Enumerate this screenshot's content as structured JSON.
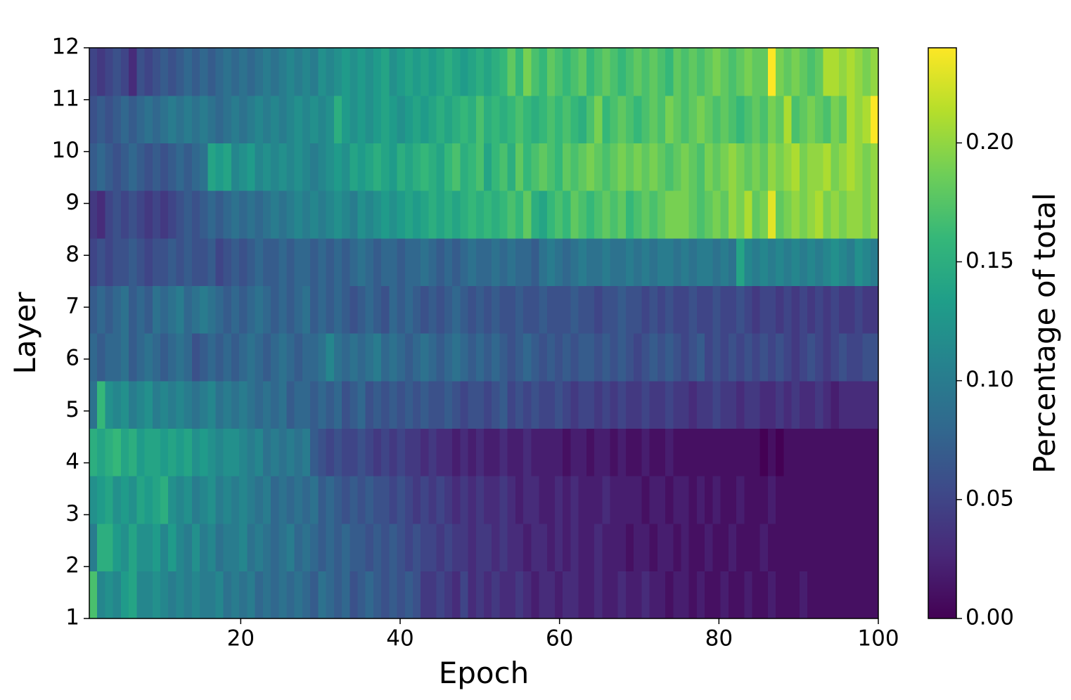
{
  "chart_data": {
    "type": "heatmap",
    "xlabel": "Epoch",
    "ylabel": "Layer",
    "colorbar_label": "Percentage of total",
    "xlim": [
      1,
      100
    ],
    "ylim": [
      1,
      12
    ],
    "xticks": [
      20,
      40,
      60,
      80,
      100
    ],
    "yticks": [
      1,
      2,
      3,
      4,
      5,
      6,
      7,
      8,
      9,
      10,
      11,
      12
    ],
    "clim": [
      0,
      0.24
    ],
    "cticks": [
      {
        "value": 0,
        "label": "0.00"
      },
      {
        "value": 0.05,
        "label": "0.05"
      },
      {
        "value": 0.1,
        "label": "0.10"
      },
      {
        "value": 0.15,
        "label": "0.15"
      },
      {
        "value": 0.2,
        "label": "0.20"
      }
    ],
    "colormap": [
      "#440154",
      "#482878",
      "#3e4989",
      "#31688e",
      "#26828e",
      "#1f9e89",
      "#35b779",
      "#6ece58",
      "#b5de2b",
      "#fde725"
    ],
    "values": [
      [
        0.17,
        0.11,
        0.12,
        0.11,
        0.13,
        0.14,
        0.11,
        0.11,
        0.12,
        0.11,
        0.1,
        0.11,
        0.1,
        0.11,
        0.1,
        0.1,
        0.11,
        0.09,
        0.1,
        0.09,
        0.1,
        0.08,
        0.09,
        0.08,
        0.09,
        0.08,
        0.09,
        0.08,
        0.07,
        0.09,
        0.08,
        0.07,
        0.08,
        0.06,
        0.07,
        0.08,
        0.07,
        0.06,
        0.07,
        0.06,
        0.07,
        0.06,
        0.04,
        0.04,
        0.05,
        0.04,
        0.03,
        0.05,
        0.03,
        0.04,
        0.03,
        0.04,
        0.03,
        0.03,
        0.04,
        0.03,
        0.02,
        0.03,
        0.03,
        0.02,
        0.03,
        0.03,
        0.02,
        0.02,
        0.03,
        0.02,
        0.02,
        0.03,
        0.02,
        0.02,
        0.03,
        0.02,
        0.02,
        0.01,
        0.02,
        0.02,
        0.01,
        0.02,
        0.01,
        0.01,
        0.02,
        0.01,
        0.01,
        0.02,
        0.01,
        0.01,
        0.02,
        0.01,
        0.01,
        0.01,
        0.02,
        0.01,
        0.01,
        0.01,
        0.01,
        0.01,
        0.01,
        0.01,
        0.01,
        0.01
      ],
      [
        0.1,
        0.15,
        0.15,
        0.13,
        0.12,
        0.14,
        0.12,
        0.12,
        0.13,
        0.11,
        0.13,
        0.11,
        0.1,
        0.12,
        0.1,
        0.11,
        0.09,
        0.1,
        0.1,
        0.11,
        0.09,
        0.1,
        0.09,
        0.08,
        0.09,
        0.1,
        0.08,
        0.09,
        0.08,
        0.07,
        0.08,
        0.07,
        0.08,
        0.07,
        0.07,
        0.06,
        0.07,
        0.06,
        0.07,
        0.06,
        0.05,
        0.06,
        0.05,
        0.05,
        0.04,
        0.05,
        0.04,
        0.04,
        0.03,
        0.04,
        0.04,
        0.03,
        0.04,
        0.03,
        0.03,
        0.02,
        0.03,
        0.03,
        0.02,
        0.03,
        0.02,
        0.03,
        0.02,
        0.02,
        0.03,
        0.02,
        0.02,
        0.02,
        0.01,
        0.02,
        0.02,
        0.01,
        0.02,
        0.02,
        0.01,
        0.02,
        0.01,
        0.01,
        0.02,
        0.01,
        0.01,
        0.02,
        0.01,
        0.01,
        0.01,
        0.02,
        0.01,
        0.01,
        0.01,
        0.01,
        0.01,
        0.01,
        0.01,
        0.01,
        0.01,
        0.01,
        0.01,
        0.01,
        0.01,
        0.01
      ],
      [
        0.12,
        0.13,
        0.14,
        0.12,
        0.13,
        0.12,
        0.14,
        0.13,
        0.14,
        0.15,
        0.12,
        0.11,
        0.12,
        0.1,
        0.11,
        0.12,
        0.1,
        0.11,
        0.1,
        0.11,
        0.1,
        0.09,
        0.1,
        0.08,
        0.09,
        0.08,
        0.09,
        0.08,
        0.09,
        0.07,
        0.08,
        0.07,
        0.06,
        0.07,
        0.06,
        0.07,
        0.06,
        0.06,
        0.05,
        0.06,
        0.05,
        0.04,
        0.05,
        0.04,
        0.05,
        0.04,
        0.03,
        0.04,
        0.03,
        0.04,
        0.03,
        0.03,
        0.04,
        0.03,
        0.02,
        0.03,
        0.03,
        0.02,
        0.02,
        0.03,
        0.02,
        0.03,
        0.02,
        0.02,
        0.02,
        0.03,
        0.02,
        0.02,
        0.02,
        0.02,
        0.01,
        0.02,
        0.02,
        0.01,
        0.02,
        0.02,
        0.01,
        0.02,
        0.01,
        0.02,
        0.01,
        0.01,
        0.02,
        0.01,
        0.01,
        0.01,
        0.02,
        0.01,
        0.01,
        0.01,
        0.01,
        0.01,
        0.01,
        0.01,
        0.01,
        0.01,
        0.01,
        0.01,
        0.01,
        0.01
      ],
      [
        0.15,
        0.14,
        0.15,
        0.16,
        0.14,
        0.15,
        0.13,
        0.14,
        0.14,
        0.13,
        0.14,
        0.13,
        0.14,
        0.12,
        0.13,
        0.12,
        0.11,
        0.12,
        0.12,
        0.11,
        0.1,
        0.11,
        0.09,
        0.1,
        0.09,
        0.1,
        0.09,
        0.1,
        0.07,
        0.06,
        0.05,
        0.06,
        0.05,
        0.05,
        0.06,
        0.05,
        0.04,
        0.05,
        0.04,
        0.05,
        0.04,
        0.04,
        0.03,
        0.04,
        0.03,
        0.03,
        0.02,
        0.03,
        0.02,
        0.03,
        0.02,
        0.02,
        0.03,
        0.02,
        0.02,
        0.03,
        0.02,
        0.02,
        0.02,
        0.02,
        0.01,
        0.02,
        0.02,
        0.01,
        0.02,
        0.02,
        0.01,
        0.02,
        0.01,
        0.01,
        0.02,
        0.01,
        0.01,
        0.02,
        0.01,
        0.01,
        0.01,
        0.01,
        0.01,
        0.01,
        0.01,
        0.01,
        0.01,
        0.01,
        0.01,
        0.0,
        0.01,
        0.0,
        0.01,
        0.01,
        0.01,
        0.01,
        0.01,
        0.01,
        0.01,
        0.01,
        0.01,
        0.01,
        0.01,
        0.01
      ],
      [
        0.09,
        0.16,
        0.12,
        0.11,
        0.12,
        0.1,
        0.11,
        0.12,
        0.1,
        0.11,
        0.1,
        0.11,
        0.1,
        0.09,
        0.1,
        0.11,
        0.09,
        0.1,
        0.09,
        0.1,
        0.09,
        0.08,
        0.09,
        0.08,
        0.09,
        0.07,
        0.08,
        0.08,
        0.07,
        0.08,
        0.07,
        0.08,
        0.06,
        0.07,
        0.08,
        0.06,
        0.07,
        0.06,
        0.07,
        0.06,
        0.07,
        0.06,
        0.07,
        0.06,
        0.06,
        0.07,
        0.06,
        0.05,
        0.06,
        0.06,
        0.05,
        0.06,
        0.07,
        0.05,
        0.06,
        0.05,
        0.06,
        0.05,
        0.05,
        0.06,
        0.05,
        0.04,
        0.05,
        0.05,
        0.04,
        0.05,
        0.04,
        0.05,
        0.04,
        0.04,
        0.05,
        0.04,
        0.04,
        0.05,
        0.04,
        0.04,
        0.03,
        0.04,
        0.04,
        0.05,
        0.04,
        0.04,
        0.03,
        0.04,
        0.04,
        0.03,
        0.03,
        0.04,
        0.03,
        0.04,
        0.03,
        0.03,
        0.04,
        0.03,
        0.02,
        0.03,
        0.03,
        0.03,
        0.03,
        0.03
      ],
      [
        0.08,
        0.07,
        0.08,
        0.08,
        0.09,
        0.07,
        0.08,
        0.09,
        0.08,
        0.07,
        0.08,
        0.09,
        0.08,
        0.06,
        0.07,
        0.08,
        0.07,
        0.08,
        0.07,
        0.08,
        0.09,
        0.08,
        0.07,
        0.08,
        0.09,
        0.08,
        0.07,
        0.08,
        0.08,
        0.09,
        0.11,
        0.09,
        0.08,
        0.09,
        0.08,
        0.09,
        0.1,
        0.08,
        0.09,
        0.08,
        0.07,
        0.08,
        0.09,
        0.08,
        0.07,
        0.08,
        0.09,
        0.08,
        0.07,
        0.08,
        0.07,
        0.08,
        0.07,
        0.06,
        0.07,
        0.08,
        0.07,
        0.06,
        0.07,
        0.06,
        0.07,
        0.06,
        0.07,
        0.07,
        0.06,
        0.07,
        0.06,
        0.07,
        0.06,
        0.05,
        0.06,
        0.07,
        0.06,
        0.07,
        0.06,
        0.05,
        0.06,
        0.07,
        0.05,
        0.06,
        0.05,
        0.06,
        0.05,
        0.06,
        0.05,
        0.06,
        0.05,
        0.06,
        0.05,
        0.04,
        0.05,
        0.06,
        0.05,
        0.04,
        0.05,
        0.06,
        0.05,
        0.05,
        0.06,
        0.06
      ],
      [
        0.07,
        0.08,
        0.07,
        0.08,
        0.09,
        0.07,
        0.08,
        0.07,
        0.09,
        0.08,
        0.09,
        0.1,
        0.08,
        0.09,
        0.1,
        0.09,
        0.08,
        0.07,
        0.08,
        0.07,
        0.08,
        0.09,
        0.08,
        0.07,
        0.08,
        0.07,
        0.08,
        0.09,
        0.07,
        0.08,
        0.07,
        0.08,
        0.07,
        0.06,
        0.07,
        0.08,
        0.07,
        0.06,
        0.08,
        0.07,
        0.08,
        0.07,
        0.06,
        0.07,
        0.06,
        0.07,
        0.08,
        0.07,
        0.06,
        0.07,
        0.06,
        0.07,
        0.06,
        0.06,
        0.07,
        0.06,
        0.06,
        0.07,
        0.06,
        0.06,
        0.06,
        0.07,
        0.06,
        0.06,
        0.05,
        0.06,
        0.06,
        0.07,
        0.06,
        0.06,
        0.05,
        0.06,
        0.05,
        0.06,
        0.05,
        0.05,
        0.06,
        0.05,
        0.05,
        0.06,
        0.05,
        0.05,
        0.06,
        0.05,
        0.04,
        0.05,
        0.05,
        0.04,
        0.05,
        0.04,
        0.05,
        0.04,
        0.05,
        0.04,
        0.05,
        0.04,
        0.04,
        0.05,
        0.04,
        0.04
      ],
      [
        0.05,
        0.06,
        0.05,
        0.06,
        0.06,
        0.07,
        0.06,
        0.05,
        0.06,
        0.06,
        0.07,
        0.06,
        0.07,
        0.06,
        0.06,
        0.07,
        0.05,
        0.06,
        0.07,
        0.06,
        0.07,
        0.08,
        0.07,
        0.07,
        0.08,
        0.07,
        0.08,
        0.08,
        0.07,
        0.08,
        0.07,
        0.08,
        0.07,
        0.08,
        0.09,
        0.08,
        0.07,
        0.08,
        0.08,
        0.07,
        0.08,
        0.08,
        0.09,
        0.08,
        0.07,
        0.08,
        0.07,
        0.08,
        0.09,
        0.08,
        0.08,
        0.09,
        0.08,
        0.09,
        0.08,
        0.08,
        0.07,
        0.09,
        0.1,
        0.09,
        0.08,
        0.09,
        0.1,
        0.09,
        0.09,
        0.1,
        0.09,
        0.09,
        0.1,
        0.09,
        0.1,
        0.09,
        0.1,
        0.1,
        0.09,
        0.1,
        0.09,
        0.1,
        0.1,
        0.09,
        0.1,
        0.09,
        0.14,
        0.11,
        0.1,
        0.11,
        0.1,
        0.11,
        0.1,
        0.11,
        0.1,
        0.11,
        0.1,
        0.11,
        0.12,
        0.11,
        0.1,
        0.12,
        0.11,
        0.1
      ],
      [
        0.04,
        0.03,
        0.05,
        0.06,
        0.05,
        0.06,
        0.05,
        0.04,
        0.05,
        0.04,
        0.05,
        0.06,
        0.07,
        0.06,
        0.07,
        0.08,
        0.07,
        0.08,
        0.09,
        0.08,
        0.09,
        0.08,
        0.09,
        0.1,
        0.09,
        0.1,
        0.11,
        0.1,
        0.11,
        0.1,
        0.11,
        0.12,
        0.11,
        0.1,
        0.12,
        0.11,
        0.12,
        0.13,
        0.12,
        0.13,
        0.14,
        0.13,
        0.14,
        0.15,
        0.14,
        0.15,
        0.14,
        0.15,
        0.16,
        0.15,
        0.16,
        0.15,
        0.16,
        0.17,
        0.16,
        0.18,
        0.15,
        0.14,
        0.16,
        0.17,
        0.16,
        0.18,
        0.17,
        0.16,
        0.17,
        0.18,
        0.17,
        0.18,
        0.16,
        0.17,
        0.18,
        0.17,
        0.18,
        0.19,
        0.19,
        0.19,
        0.18,
        0.17,
        0.18,
        0.19,
        0.18,
        0.2,
        0.19,
        0.21,
        0.18,
        0.19,
        0.23,
        0.18,
        0.19,
        0.2,
        0.19,
        0.2,
        0.21,
        0.19,
        0.2,
        0.19,
        0.2,
        0.2,
        0.19,
        0.2
      ],
      [
        0.07,
        0.08,
        0.07,
        0.06,
        0.07,
        0.08,
        0.07,
        0.06,
        0.07,
        0.06,
        0.07,
        0.08,
        0.07,
        0.08,
        0.09,
        0.14,
        0.13,
        0.14,
        0.11,
        0.12,
        0.13,
        0.11,
        0.12,
        0.11,
        0.12,
        0.11,
        0.12,
        0.11,
        0.1,
        0.11,
        0.12,
        0.13,
        0.12,
        0.14,
        0.13,
        0.14,
        0.15,
        0.14,
        0.13,
        0.15,
        0.14,
        0.15,
        0.16,
        0.15,
        0.14,
        0.16,
        0.17,
        0.15,
        0.16,
        0.17,
        0.14,
        0.16,
        0.17,
        0.15,
        0.18,
        0.16,
        0.17,
        0.18,
        0.17,
        0.16,
        0.18,
        0.17,
        0.18,
        0.19,
        0.18,
        0.17,
        0.18,
        0.19,
        0.18,
        0.19,
        0.18,
        0.19,
        0.18,
        0.17,
        0.18,
        0.19,
        0.18,
        0.17,
        0.19,
        0.18,
        0.19,
        0.2,
        0.19,
        0.18,
        0.19,
        0.18,
        0.2,
        0.19,
        0.2,
        0.21,
        0.19,
        0.2,
        0.2,
        0.21,
        0.19,
        0.2,
        0.21,
        0.2,
        0.19,
        0.2
      ],
      [
        0.06,
        0.07,
        0.06,
        0.07,
        0.08,
        0.07,
        0.08,
        0.09,
        0.08,
        0.09,
        0.1,
        0.09,
        0.1,
        0.09,
        0.1,
        0.09,
        0.08,
        0.09,
        0.1,
        0.09,
        0.1,
        0.11,
        0.1,
        0.11,
        0.1,
        0.11,
        0.12,
        0.11,
        0.12,
        0.11,
        0.12,
        0.15,
        0.13,
        0.12,
        0.13,
        0.12,
        0.13,
        0.14,
        0.13,
        0.12,
        0.13,
        0.14,
        0.13,
        0.14,
        0.15,
        0.14,
        0.15,
        0.16,
        0.15,
        0.17,
        0.15,
        0.16,
        0.15,
        0.16,
        0.17,
        0.16,
        0.15,
        0.16,
        0.17,
        0.16,
        0.17,
        0.16,
        0.15,
        0.17,
        0.19,
        0.16,
        0.17,
        0.18,
        0.17,
        0.16,
        0.17,
        0.18,
        0.17,
        0.19,
        0.18,
        0.17,
        0.18,
        0.19,
        0.18,
        0.17,
        0.18,
        0.17,
        0.16,
        0.17,
        0.18,
        0.17,
        0.19,
        0.18,
        0.21,
        0.17,
        0.18,
        0.19,
        0.18,
        0.17,
        0.19,
        0.18,
        0.21,
        0.2,
        0.21,
        0.24
      ],
      [
        0.05,
        0.04,
        0.05,
        0.06,
        0.05,
        0.03,
        0.06,
        0.05,
        0.06,
        0.07,
        0.06,
        0.07,
        0.08,
        0.07,
        0.08,
        0.07,
        0.08,
        0.09,
        0.08,
        0.09,
        0.08,
        0.09,
        0.1,
        0.09,
        0.1,
        0.11,
        0.1,
        0.11,
        0.1,
        0.12,
        0.11,
        0.12,
        0.13,
        0.12,
        0.13,
        0.12,
        0.13,
        0.14,
        0.12,
        0.13,
        0.14,
        0.13,
        0.14,
        0.13,
        0.14,
        0.15,
        0.14,
        0.13,
        0.14,
        0.15,
        0.14,
        0.15,
        0.16,
        0.18,
        0.16,
        0.19,
        0.17,
        0.16,
        0.18,
        0.17,
        0.16,
        0.17,
        0.18,
        0.16,
        0.17,
        0.18,
        0.17,
        0.16,
        0.17,
        0.18,
        0.17,
        0.18,
        0.17,
        0.16,
        0.18,
        0.17,
        0.18,
        0.17,
        0.18,
        0.19,
        0.18,
        0.17,
        0.18,
        0.19,
        0.18,
        0.18,
        0.24,
        0.19,
        0.18,
        0.19,
        0.18,
        0.17,
        0.18,
        0.21,
        0.21,
        0.2,
        0.21,
        0.2,
        0.19,
        0.2
      ]
    ]
  }
}
